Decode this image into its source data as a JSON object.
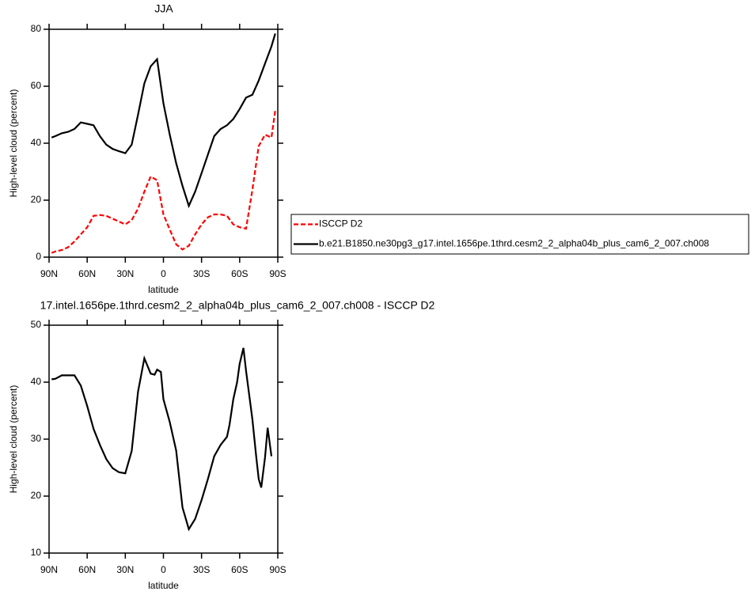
{
  "chart_data": [
    {
      "type": "line",
      "title": "JJA",
      "xlabel": "latitude",
      "ylabel": "High-level cloud (percent)",
      "x": [
        88,
        85,
        80,
        75,
        70,
        65,
        60,
        55,
        50,
        45,
        40,
        35,
        30,
        25,
        20,
        15,
        10,
        5,
        0,
        -5,
        -10,
        -15,
        -20,
        -25,
        -30,
        -35,
        -40,
        -45,
        -50,
        -55,
        -60,
        -65,
        -70,
        -75,
        -80,
        -85,
        -88
      ],
      "series": [
        {
          "name": "ISCCP D2",
          "color": "#ff0000",
          "dashed": true,
          "values": [
            1.5,
            2,
            2.5,
            3.5,
            5.5,
            8,
            10.5,
            14.5,
            14.8,
            14.5,
            13.5,
            12.5,
            11.5,
            13,
            17,
            23,
            28.3,
            27,
            15,
            9.7,
            4.5,
            2.7,
            4,
            8,
            11.5,
            14,
            15,
            15,
            14.5,
            11.5,
            10.5,
            10,
            23.6,
            39,
            43,
            42,
            51.5
          ]
        },
        {
          "name": "b.e21.B1850.ne30pg3_g17.intel.1656pe.1thrd.cesm2_2_alpha04b_plus_cam6_2_007.ch008",
          "color": "#000000",
          "dashed": false,
          "values": [
            42,
            42.5,
            43.5,
            44,
            45,
            47.3,
            46.8,
            46.3,
            42.5,
            39.5,
            38,
            37.2,
            36.5,
            39.5,
            50,
            61,
            67,
            69.5,
            54,
            43,
            33,
            25,
            18,
            23,
            29.5,
            36,
            42.5,
            45,
            46.3,
            48.5,
            52,
            56,
            57,
            62,
            68,
            74,
            78.5
          ]
        }
      ],
      "xlim": [
        90,
        -90
      ],
      "xticks": [
        {
          "value": 90,
          "label": "90N"
        },
        {
          "value": 60,
          "label": "60N"
        },
        {
          "value": 30,
          "label": "30N"
        },
        0,
        {
          "value": -30,
          "label": "30S"
        },
        {
          "value": -60,
          "label": "60S"
        },
        {
          "value": -90,
          "label": "90S"
        }
      ],
      "ylim": [
        0,
        80
      ],
      "yticks": [
        0,
        20,
        40,
        60,
        80
      ]
    },
    {
      "type": "line",
      "title": "17.intel.1656pe.1thrd.cesm2_2_alpha04b_plus_cam6_2_007.ch008 - ISCCP D2",
      "xlabel": "latitude",
      "ylabel": "High-level cloud (percent)",
      "x": [
        88,
        85,
        80,
        75,
        70,
        65,
        60,
        55,
        50,
        45,
        40,
        35,
        30,
        25,
        20,
        15,
        10,
        7,
        5,
        2,
        0,
        -5,
        -10,
        -15,
        -20,
        -25,
        -30,
        -35,
        -40,
        -45,
        -50,
        -52,
        -55,
        -58,
        -60,
        -63,
        -65,
        -70,
        -73,
        -75,
        -77,
        -80,
        -82,
        -85
      ],
      "series": [
        {
          "color": "#000000",
          "dashed": false,
          "values": [
            40.5,
            40.6,
            41.2,
            41.2,
            41.2,
            39.4,
            35.8,
            31.8,
            29,
            26.5,
            24.9,
            24.2,
            24,
            27.9,
            38.3,
            44.2,
            41.5,
            41.3,
            42.2,
            41.8,
            37,
            33,
            28,
            18,
            14.2,
            16,
            19.3,
            23,
            27,
            29,
            30.4,
            32.5,
            37,
            40,
            43.2,
            46,
            42,
            33.5,
            27,
            23,
            21.5,
            26.8,
            32,
            27
          ]
        }
      ],
      "xlim": [
        90,
        -90
      ],
      "xticks": [
        {
          "value": 90,
          "label": "90N"
        },
        {
          "value": 60,
          "label": "60N"
        },
        {
          "value": 30,
          "label": "30N"
        },
        0,
        {
          "value": -30,
          "label": "30S"
        },
        {
          "value": -60,
          "label": "60S"
        },
        {
          "value": -90,
          "label": "90S"
        }
      ],
      "ylim": [
        10,
        50
      ],
      "yticks": [
        10,
        20,
        30,
        40,
        50
      ]
    }
  ]
}
